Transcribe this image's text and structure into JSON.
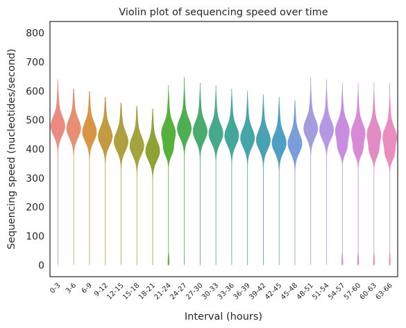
{
  "chart_data": {
    "type": "violin",
    "title": "Violin plot of sequencing speed over time",
    "xlabel": "Interval (hours)",
    "ylabel": "Sequencing speed (nucleotides/second)",
    "ylim": [
      -40,
      840
    ],
    "yticks": [
      0,
      100,
      200,
      300,
      400,
      500,
      600,
      700,
      800
    ],
    "grid": false,
    "categories": [
      "0-3",
      "3-6",
      "6-9",
      "9-12",
      "12-15",
      "15-18",
      "18-21",
      "21-24",
      "24-27",
      "27-30",
      "30-33",
      "33-36",
      "36-39",
      "39-42",
      "42-45",
      "45-48",
      "48-51",
      "51-54",
      "54-57",
      "57-60",
      "60-63",
      "63-66"
    ],
    "colors": [
      "#ea8a80",
      "#e68f72",
      "#d99546",
      "#c49a41",
      "#af9f3f",
      "#a4a33d",
      "#8da435",
      "#56b03b",
      "#4eae54",
      "#49ab6f",
      "#46a98a",
      "#44a799",
      "#45a5a8",
      "#49a1b4",
      "#4d9fc4",
      "#7a9ed9",
      "#a39cdd",
      "#b597e6",
      "#c98de0",
      "#d98ad6",
      "#e28bc5",
      "#ea8ec0"
    ],
    "series": [
      {
        "values_median": [
          478,
          470,
          458,
          443,
          425,
          410,
          392,
          455,
          470,
          460,
          452,
          445,
          437,
          430,
          420,
          418,
          470,
          465,
          462,
          455,
          450,
          440
        ]
      },
      {
        "values_max": [
          640,
          610,
          600,
          580,
          560,
          550,
          540,
          620,
          650,
          630,
          620,
          610,
          600,
          590,
          580,
          570,
          650,
          640,
          630,
          630,
          630,
          630
        ]
      }
    ],
    "bimodal_low_tail": [
      false,
      false,
      false,
      false,
      false,
      false,
      false,
      true,
      false,
      false,
      false,
      false,
      false,
      false,
      false,
      false,
      false,
      false,
      true,
      true,
      true,
      true
    ]
  }
}
